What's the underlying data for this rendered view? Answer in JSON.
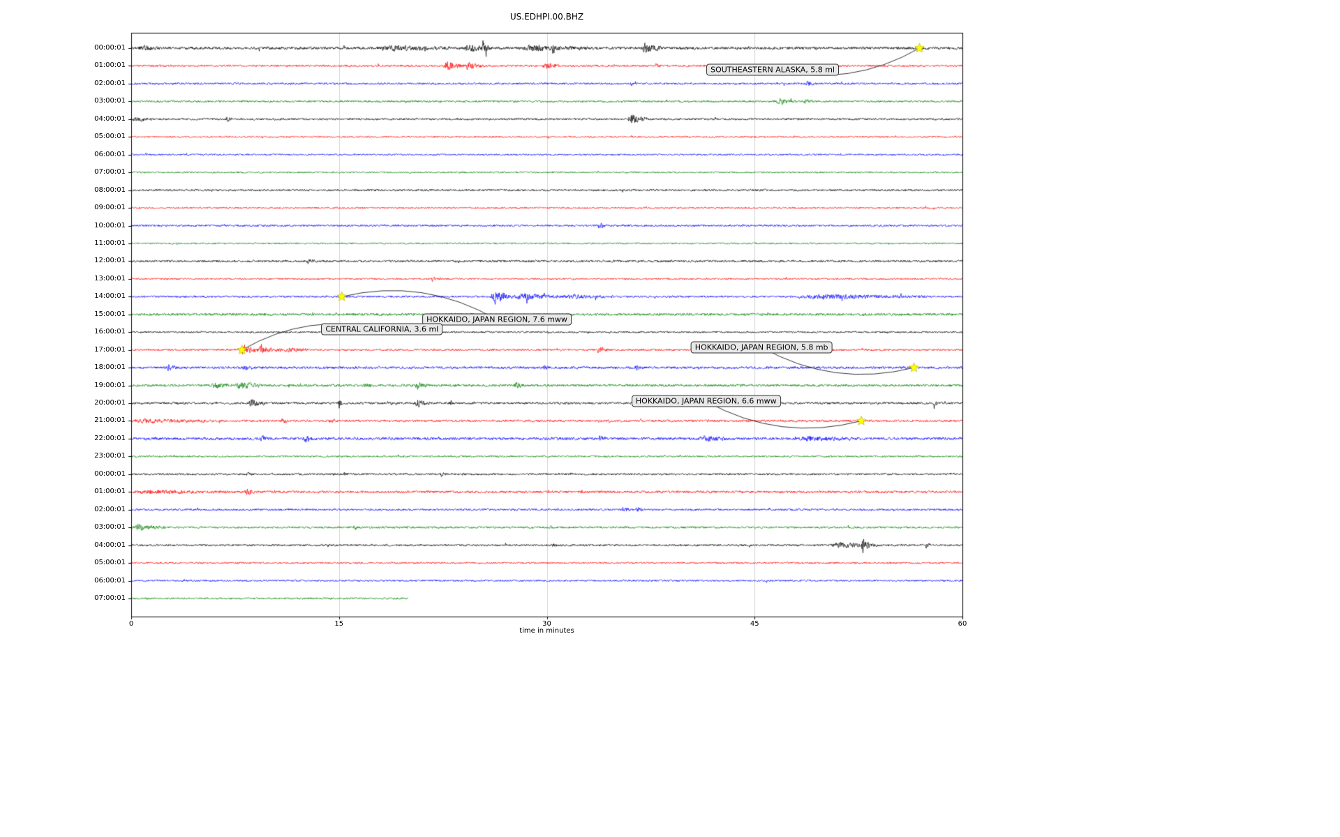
{
  "title": "US.EDHPI.00.BHZ",
  "chart_data": {
    "type": "line",
    "subtype": "seismogram-helicorder",
    "title": "US.EDHPI.00.BHZ",
    "xlabel": "time in minutes",
    "x_ticks": [
      0,
      15,
      30,
      45,
      60
    ],
    "x_range": [
      0,
      60
    ],
    "grid_vertical_minutes": [
      15,
      30,
      45
    ],
    "trace_color_cycle": [
      "#000000",
      "#ff0000",
      "#0000ff",
      "#008000"
    ],
    "event_marker_color": "#ffff00",
    "rows": [
      {
        "label": "00:00:01",
        "color": "#000000",
        "base": 2.2,
        "bursts": [
          [
            0.5,
            2,
            3
          ],
          [
            18,
            23,
            3
          ],
          [
            24,
            26,
            5
          ],
          [
            25.3,
            25.8,
            7
          ],
          [
            28,
            33,
            4
          ],
          [
            30.3,
            30.8,
            6
          ],
          [
            36.8,
            38.3,
            7
          ]
        ]
      },
      {
        "label": "01:00:01",
        "color": "#ff0000",
        "base": 1.6,
        "bursts": [
          [
            22.5,
            24,
            8
          ],
          [
            24,
            25.5,
            5
          ],
          [
            29.7,
            31,
            5
          ],
          [
            37.8,
            38.3,
            3
          ]
        ]
      },
      {
        "label": "02:00:01",
        "color": "#0000ff",
        "base": 1.6,
        "bursts": [
          [
            36,
            36.4,
            2.5
          ],
          [
            48.7,
            49.3,
            4
          ]
        ]
      },
      {
        "label": "03:00:01",
        "color": "#008000",
        "base": 1.6,
        "bursts": [
          [
            46.5,
            48,
            4
          ],
          [
            48.5,
            49.3,
            3
          ]
        ]
      },
      {
        "label": "04:00:01",
        "color": "#000000",
        "base": 1.6,
        "bursts": [
          [
            0,
            1.5,
            4
          ],
          [
            6.8,
            7.3,
            3
          ],
          [
            35.8,
            37.3,
            8
          ]
        ]
      },
      {
        "label": "05:00:01",
        "color": "#ff0000",
        "base": 1.3,
        "bursts": []
      },
      {
        "label": "06:00:01",
        "color": "#0000ff",
        "base": 1.3,
        "bursts": []
      },
      {
        "label": "07:00:01",
        "color": "#008000",
        "base": 1.3,
        "bursts": []
      },
      {
        "label": "08:00:01",
        "color": "#000000",
        "base": 1.6,
        "bursts": []
      },
      {
        "label": "09:00:01",
        "color": "#ff0000",
        "base": 1.3,
        "bursts": []
      },
      {
        "label": "10:00:01",
        "color": "#0000ff",
        "base": 1.6,
        "bursts": [
          [
            33.6,
            34.4,
            4
          ]
        ]
      },
      {
        "label": "11:00:01",
        "color": "#008000",
        "base": 1.3,
        "bursts": []
      },
      {
        "label": "12:00:01",
        "color": "#000000",
        "base": 1.7,
        "bursts": [
          [
            12.6,
            13.4,
            2.5
          ]
        ]
      },
      {
        "label": "13:00:01",
        "color": "#ff0000",
        "base": 1.3,
        "bursts": [
          [
            21.6,
            22.4,
            3.5
          ]
        ]
      },
      {
        "label": "14:00:01",
        "color": "#0000ff",
        "base": 1.6,
        "bursts": [
          [
            25.9,
            27.5,
            11
          ],
          [
            27.5,
            31,
            5
          ],
          [
            31,
            35,
            3
          ],
          [
            48,
            57.5,
            3
          ]
        ]
      },
      {
        "label": "15:00:01",
        "color": "#008000",
        "base": 2.0,
        "bursts": []
      },
      {
        "label": "16:00:01",
        "color": "#000000",
        "base": 1.4,
        "bursts": []
      },
      {
        "label": "17:00:01",
        "color": "#ff0000",
        "base": 1.6,
        "bursts": [
          [
            7.9,
            9,
            9
          ],
          [
            9,
            11,
            5
          ],
          [
            11,
            13,
            3
          ],
          [
            33.6,
            34.4,
            6
          ]
        ]
      },
      {
        "label": "18:00:01",
        "color": "#0000ff",
        "base": 2.0,
        "bursts": [
          [
            2.5,
            3.3,
            4
          ],
          [
            8,
            9,
            3.5
          ],
          [
            29.7,
            30.2,
            3
          ],
          [
            36.3,
            37,
            4
          ]
        ]
      },
      {
        "label": "19:00:01",
        "color": "#008000",
        "base": 2.0,
        "bursts": [
          [
            5.8,
            7,
            4
          ],
          [
            7.5,
            9.5,
            5
          ],
          [
            16.8,
            17.4,
            4
          ],
          [
            20.5,
            21.5,
            5
          ],
          [
            27.6,
            28.4,
            4
          ]
        ]
      },
      {
        "label": "20:00:01",
        "color": "#000000",
        "base": 1.8,
        "bursts": [
          [
            8.4,
            9.6,
            6
          ],
          [
            14.9,
            15.5,
            4
          ],
          [
            20.4,
            21.6,
            6
          ],
          [
            23,
            23.4,
            3
          ],
          [
            57.9,
            58.2,
            10
          ]
        ]
      },
      {
        "label": "21:00:01",
        "color": "#ff0000",
        "base": 1.8,
        "bursts": [
          [
            0,
            6,
            2.5
          ],
          [
            10.8,
            11.3,
            4
          ],
          [
            14.3,
            14.8,
            4
          ]
        ]
      },
      {
        "label": "22:00:01",
        "color": "#0000ff",
        "base": 2.2,
        "bursts": [
          [
            9.3,
            9.8,
            5
          ],
          [
            12.4,
            13.1,
            5
          ],
          [
            33.7,
            34.3,
            4
          ],
          [
            41,
            43,
            4
          ],
          [
            48,
            52,
            3
          ]
        ]
      },
      {
        "label": "23:00:01",
        "color": "#008000",
        "base": 1.4,
        "bursts": []
      },
      {
        "label": "00:00:01",
        "color": "#000000",
        "base": 1.6,
        "bursts": [
          [
            8.3,
            8.8,
            3
          ],
          [
            15.3,
            15.7,
            2.5
          ],
          [
            22.3,
            22.7,
            2.5
          ]
        ]
      },
      {
        "label": "01:00:01",
        "color": "#ff0000",
        "base": 1.9,
        "bursts": [
          [
            0,
            7,
            2
          ],
          [
            8.2,
            8.9,
            6
          ]
        ]
      },
      {
        "label": "02:00:01",
        "color": "#0000ff",
        "base": 1.6,
        "bursts": [
          [
            35.4,
            36,
            4
          ],
          [
            36.4,
            37,
            4
          ]
        ]
      },
      {
        "label": "03:00:01",
        "color": "#008000",
        "base": 1.6,
        "bursts": [
          [
            0,
            2.5,
            4.5
          ],
          [
            16,
            16.6,
            3.5
          ]
        ]
      },
      {
        "label": "04:00:01",
        "color": "#000000",
        "base": 1.6,
        "bursts": [
          [
            30.3,
            30.8,
            3
          ],
          [
            50.5,
            54,
            4
          ],
          [
            52.7,
            53.3,
            11
          ],
          [
            57.3,
            57.7,
            4
          ]
        ]
      },
      {
        "label": "05:00:01",
        "color": "#ff0000",
        "base": 1.4,
        "bursts": []
      },
      {
        "label": "06:00:01",
        "color": "#0000ff",
        "base": 1.4,
        "bursts": []
      },
      {
        "label": "07:00:01",
        "color": "#008000",
        "base": 1.5,
        "end_minute": 20,
        "bursts": []
      }
    ],
    "events": [
      {
        "label": "SOUTHEASTERN ALASKA, 5.8 ml",
        "star": {
          "row": 0,
          "minute": 56.9
        },
        "box": {
          "row": 1.2,
          "minute": 46.3
        }
      },
      {
        "label": "HOKKAIDO, JAPAN REGION, 7.6 mww",
        "star": {
          "row": 14,
          "minute": 15.2
        },
        "box": {
          "row": 15.3,
          "minute": 26.4
        }
      },
      {
        "label": "CENTRAL CALIFORNIA, 3.6 ml",
        "star": {
          "row": 17,
          "minute": 8.0
        },
        "box": {
          "row": 15.85,
          "minute": 18.1
        }
      },
      {
        "label": "HOKKAIDO, JAPAN REGION, 5.8 mb",
        "star": {
          "row": 18,
          "minute": 56.5
        },
        "box": {
          "row": 16.85,
          "minute": 45.5
        }
      },
      {
        "label": "HOKKAIDO, JAPAN REGION, 6.6 mww",
        "star": {
          "row": 21,
          "minute": 52.7
        },
        "box": {
          "row": 19.9,
          "minute": 41.5
        }
      }
    ]
  }
}
